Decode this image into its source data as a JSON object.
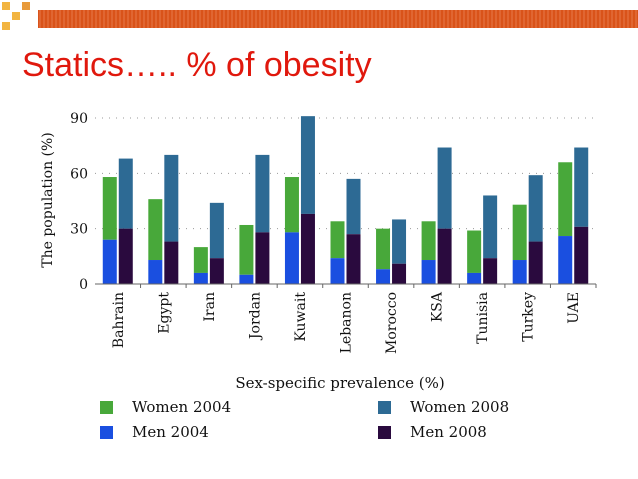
{
  "slide": {
    "title": "Statics….. % of obesity",
    "accent_color": "#e0180d",
    "header_stripe_color": "#d9531a",
    "header_square_color": "#f2b440"
  },
  "chart_data": {
    "type": "bar",
    "subtype": "stacked",
    "categories": [
      "Bahrain",
      "Egypt",
      "Iran",
      "Jordan",
      "Kuwait",
      "Lebanon",
      "Morocco",
      "KSA",
      "Tunisia",
      "Turkey",
      "UAE"
    ],
    "groups": [
      {
        "year": "2004",
        "series": [
          {
            "name": "Men 2004",
            "color": "#1a4fe0",
            "values": [
              24,
              13,
              6,
              5,
              28,
              14,
              8,
              13,
              6,
              13,
              26
            ]
          },
          {
            "name": "Women 2004",
            "color": "#48a83a",
            "values": [
              58,
              46,
              20,
              32,
              58,
              34,
              30,
              34,
              29,
              43,
              66
            ]
          }
        ]
      },
      {
        "year": "2008",
        "series": [
          {
            "name": "Men 2008",
            "color": "#2a0a3e",
            "values": [
              30,
              23,
              14,
              28,
              38,
              27,
              11,
              30,
              14,
              23,
              31
            ]
          },
          {
            "name": "Women 2008",
            "color": "#2d6a94",
            "values": [
              68,
              70,
              44,
              70,
              91,
              57,
              35,
              74,
              48,
              59,
              74
            ]
          }
        ]
      }
    ],
    "stack_note": "totals shown; lower segment = Men value, upper segment = Women value",
    "ylabel": "The population (%)",
    "xlabel": "Sex-specific prevalence (%)",
    "ylim": [
      0,
      90
    ],
    "yticks": [
      "0",
      "30",
      "60",
      "90"
    ],
    "grid": true,
    "legend": [
      {
        "label": "Women 2004",
        "color": "#48a83a"
      },
      {
        "label": "Women 2008",
        "color": "#2d6a94"
      },
      {
        "label": "Men 2004",
        "color": "#1a4fe0"
      },
      {
        "label": "Men 2008",
        "color": "#2a0a3e"
      }
    ],
    "legend_position": "bottom"
  }
}
